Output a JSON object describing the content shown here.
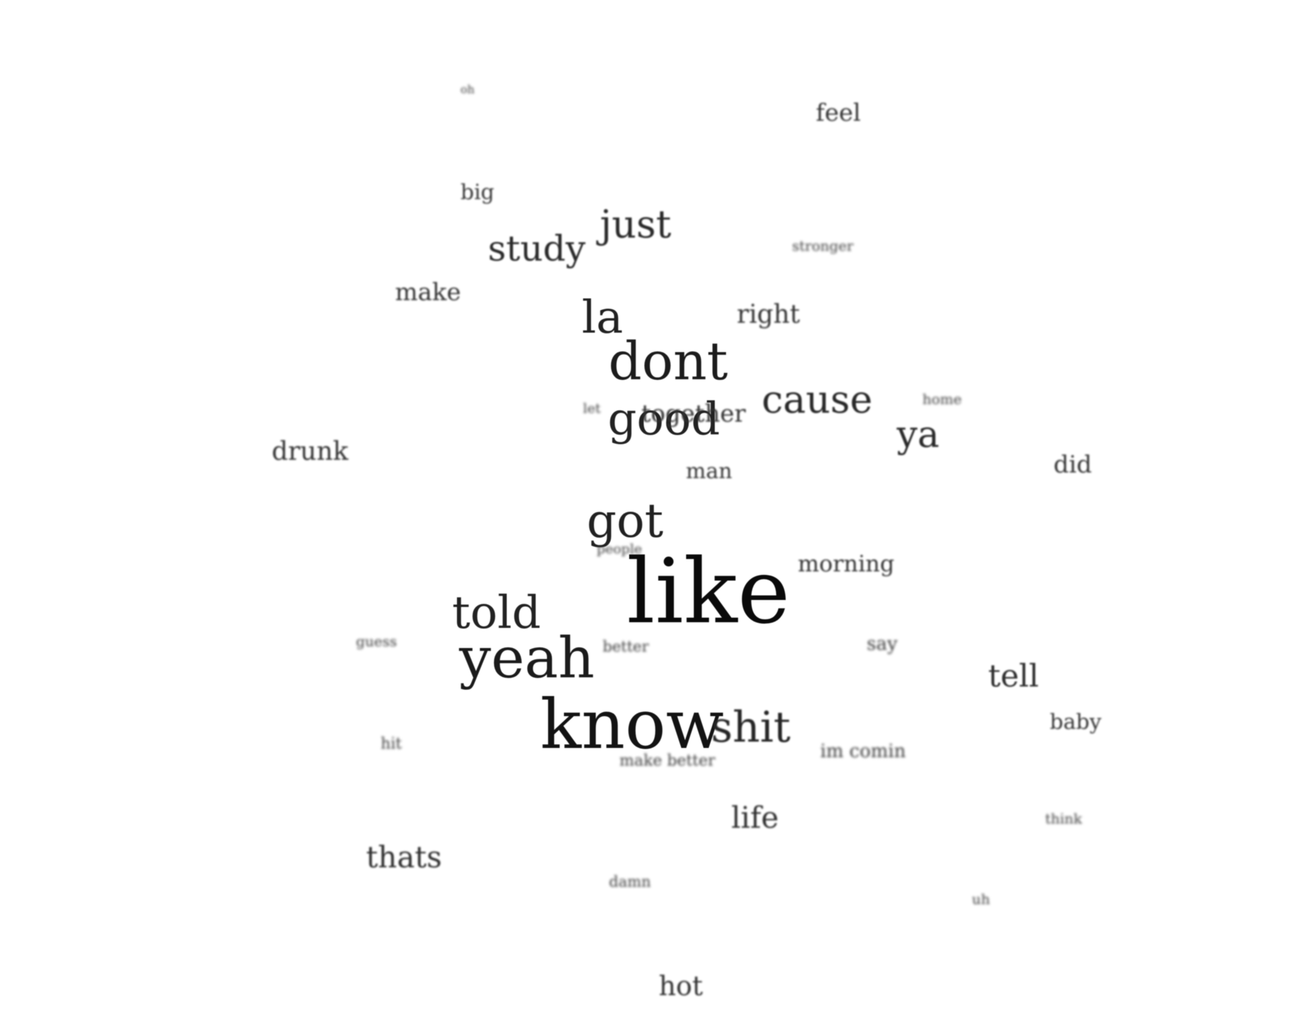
{
  "words": [
    {
      "text": "like",
      "weight": 1.0
    },
    {
      "text": "know",
      "weight": 0.85
    },
    {
      "text": "yeah",
      "weight": 0.72
    },
    {
      "text": "dont",
      "weight": 0.7
    },
    {
      "text": "got",
      "weight": 0.62
    },
    {
      "text": "told",
      "weight": 0.6
    },
    {
      "text": "la",
      "weight": 0.6
    },
    {
      "text": "good",
      "weight": 0.6
    },
    {
      "text": "shit",
      "weight": 0.55
    },
    {
      "text": "cause",
      "weight": 0.5
    },
    {
      "text": "just",
      "weight": 0.48
    },
    {
      "text": "study",
      "weight": 0.46
    },
    {
      "text": "ya",
      "weight": 0.46
    },
    {
      "text": "tell",
      "weight": 0.4
    },
    {
      "text": "life",
      "weight": 0.38
    },
    {
      "text": "thats",
      "weight": 0.38
    },
    {
      "text": "hot",
      "weight": 0.34
    },
    {
      "text": "drunk",
      "weight": 0.34
    },
    {
      "text": "right",
      "weight": 0.34
    },
    {
      "text": "together",
      "weight": 0.34
    },
    {
      "text": "make",
      "weight": 0.32
    },
    {
      "text": "feel",
      "weight": 0.32
    },
    {
      "text": "morning",
      "weight": 0.32
    },
    {
      "text": "did",
      "weight": 0.3
    },
    {
      "text": "baby",
      "weight": 0.28
    },
    {
      "text": "man",
      "weight": 0.28
    },
    {
      "text": "big",
      "weight": 0.26
    },
    {
      "text": "im comin",
      "weight": 0.24
    },
    {
      "text": "say",
      "weight": 0.22
    },
    {
      "text": "make better",
      "weight": 0.2
    },
    {
      "text": "better",
      "weight": 0.18
    },
    {
      "text": "damn",
      "weight": 0.18
    },
    {
      "text": "people",
      "weight": 0.17
    },
    {
      "text": "home",
      "weight": 0.17
    },
    {
      "text": "stronger",
      "weight": 0.17
    },
    {
      "text": "think",
      "weight": 0.17
    },
    {
      "text": "guess",
      "weight": 0.17
    },
    {
      "text": "hit",
      "weight": 0.17
    },
    {
      "text": "uh",
      "weight": 0.15
    },
    {
      "text": "let",
      "weight": 0.15
    },
    {
      "text": "oh",
      "weight": 0.14
    }
  ]
}
